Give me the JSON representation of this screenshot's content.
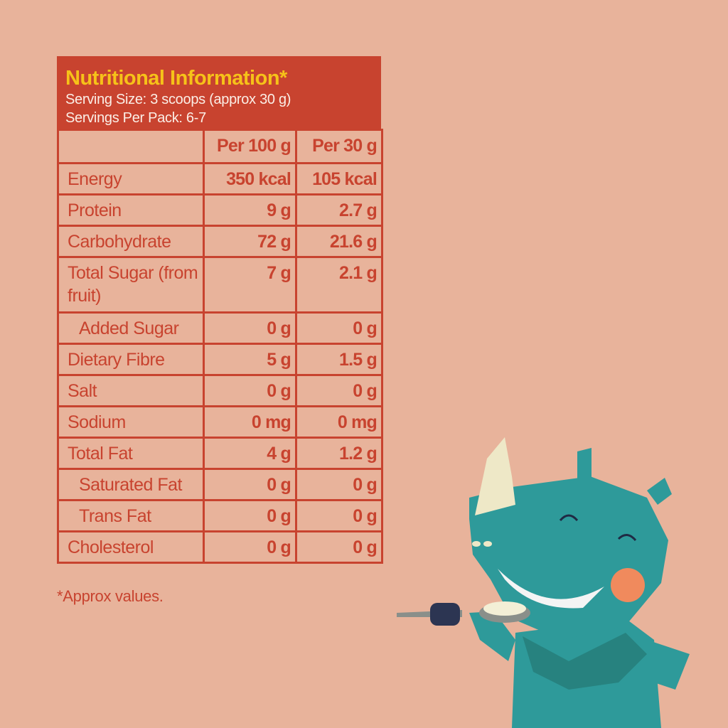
{
  "panel": {
    "title": "Nutritional Information*",
    "serving_size": "Serving Size: 3 scoops (approx 30 g)",
    "servings_per_pack": "Servings Per Pack: 6-7",
    "columns": [
      "",
      "Per 100 g",
      "Per 30 g"
    ],
    "rows": [
      {
        "label": "Energy",
        "per100": "350 kcal",
        "per30": "105 kcal"
      },
      {
        "label": "Protein",
        "per100": "9 g",
        "per30": "2.7 g"
      },
      {
        "label": "Carbohydrate",
        "per100": "72 g",
        "per30": "21.6 g"
      },
      {
        "label": "Total Sugar (from fruit)",
        "per100": "7 g",
        "per30": "2.1 g"
      },
      {
        "label": "Added Sugar",
        "per100": "0 g",
        "per30": "0 g"
      },
      {
        "label": "Dietary Fibre",
        "per100": "5 g",
        "per30": "1.5 g"
      },
      {
        "label": "Salt",
        "per100": "0 g",
        "per30": "0 g"
      },
      {
        "label": "Sodium",
        "per100": "0 mg",
        "per30": "0 mg"
      },
      {
        "label": "Total Fat",
        "per100": "4 g",
        "per30": "1.2 g"
      },
      {
        "label": "Saturated Fat",
        "per100": "0 g",
        "per30": "0 g"
      },
      {
        "label": "Trans Fat",
        "per100": "0 g",
        "per30": "0 g"
      },
      {
        "label": "Cholesterol",
        "per100": "0 g",
        "per30": "0 g"
      }
    ]
  },
  "footnote": "*Approx values.",
  "colors": {
    "background": "#e8b39b",
    "panel": "#c8432f",
    "title": "#f6c219",
    "rhino": "#2e9a9a"
  }
}
